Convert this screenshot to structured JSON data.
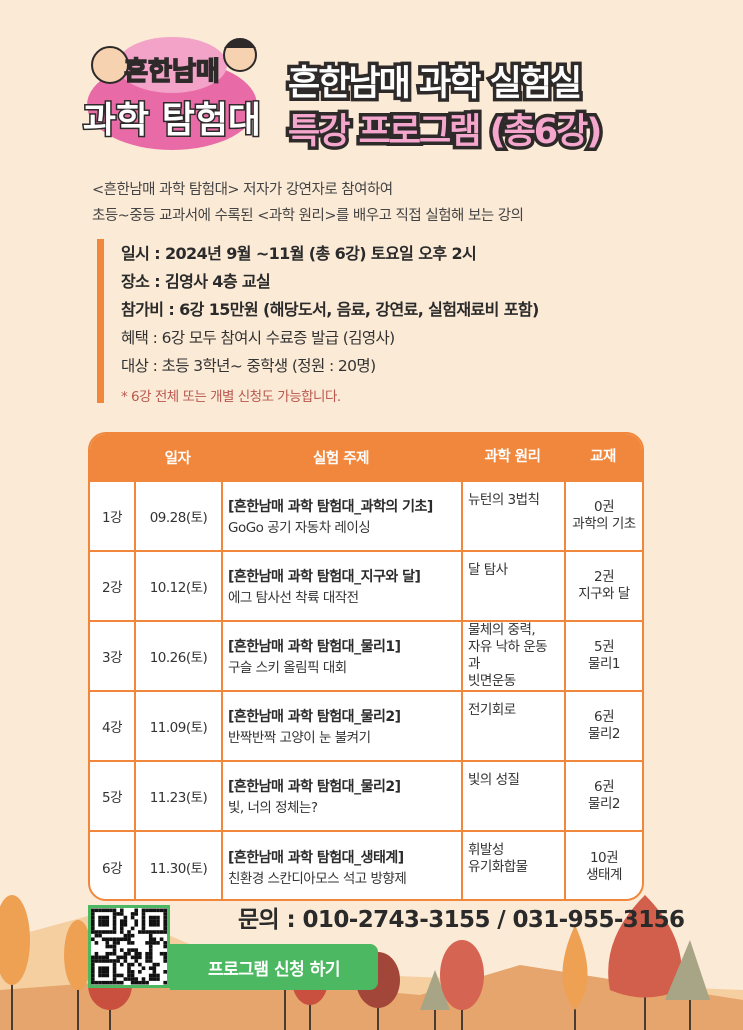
{
  "logo": {
    "text_top": "흔한남매",
    "text_bottom": "과학 탐험대"
  },
  "title": {
    "line1": "흔한남매 과학 실험실",
    "line2": "특강 프로그램 (총6강)"
  },
  "intro": [
    "<흔한남매 과학 탐험대> 저자가 강연자로 참여하여",
    "초등~중등 교과서에 수록된 <과학 원리>를 배우고 직접 실험해 보는  강의"
  ],
  "info": {
    "date": "일시 :  2024년 9월 ~11월 (총 6강) 토요일 오후 2시",
    "place": "장소 :  김영사 4층 교실",
    "fee": "참가비 :  6강 15만원 (해당도서, 음료, 강연료, 실험재료비 포함)",
    "benefit": "혜택 :  6강 모두 참여시 수료증 발급 (김영사)",
    "target": "대상 : 초등 3학년~ 중학생  (정원 : 20명)",
    "note": "*  6강 전체 또는 개별 신청도 가능합니다."
  },
  "table": {
    "headers": [
      "",
      "일자",
      "실험 주제",
      "과학 원리",
      "교재"
    ],
    "rows": [
      {
        "no": "1강",
        "date": "09.28(토)",
        "series": "[흔한남매 과학 탐험대_과학의 기초]",
        "topic": "GoGo 공기 자동차 레이싱",
        "principle": [
          "뉴턴의 3법칙"
        ],
        "book": [
          "0권",
          "과학의 기초"
        ]
      },
      {
        "no": "2강",
        "date": "10.12(토)",
        "series": "[흔한남매 과학 탐험대_지구와 달]",
        "topic": "에그 탐사선 착륙 대작전",
        "principle": [
          "달 탐사"
        ],
        "book": [
          "2권",
          "지구와 달"
        ]
      },
      {
        "no": "3강",
        "date": "10.26(토)",
        "series": "[흔한남매 과학 탐험대_물리1]",
        "topic": "구슬 스키 올림픽 대회",
        "principle": [
          "물체의 중력,",
          "자유 낙하 운동과",
          "빗면운동"
        ],
        "book": [
          "5권",
          "물리1"
        ]
      },
      {
        "no": "4강",
        "date": "11.09(토)",
        "series": "[흔한남매 과학 탐험대_물리2]",
        "topic": "반짝반짝 고양이 눈 불켜기",
        "principle": [
          "전기회로"
        ],
        "book": [
          "6권",
          "물리2"
        ]
      },
      {
        "no": "5강",
        "date": "11.23(토)",
        "series": "[흔한남매 과학 탐험대_물리2]",
        "topic": "빛, 너의 정체는?",
        "principle": [
          "빛의 성질"
        ],
        "book": [
          "6권",
          "물리2"
        ]
      },
      {
        "no": "6강",
        "date": "11.30(토)",
        "series": "[흔한남매 과학 탐험대_생태계]",
        "topic": "친환경 스칸디아모스 석고 방향제",
        "principle": [
          "휘발성",
          "유기화합물"
        ],
        "book": [
          "10권",
          "생태계"
        ]
      }
    ]
  },
  "contact": "문의 : 010-2743-3155  /   031-955-3156",
  "apply_label": "프로그램 신청 하기",
  "colors": {
    "background": "#fbead6",
    "accent": "#f0873c",
    "button": "#4cb861",
    "title_pink": "#f4a6cc",
    "note": "#b8574f"
  }
}
